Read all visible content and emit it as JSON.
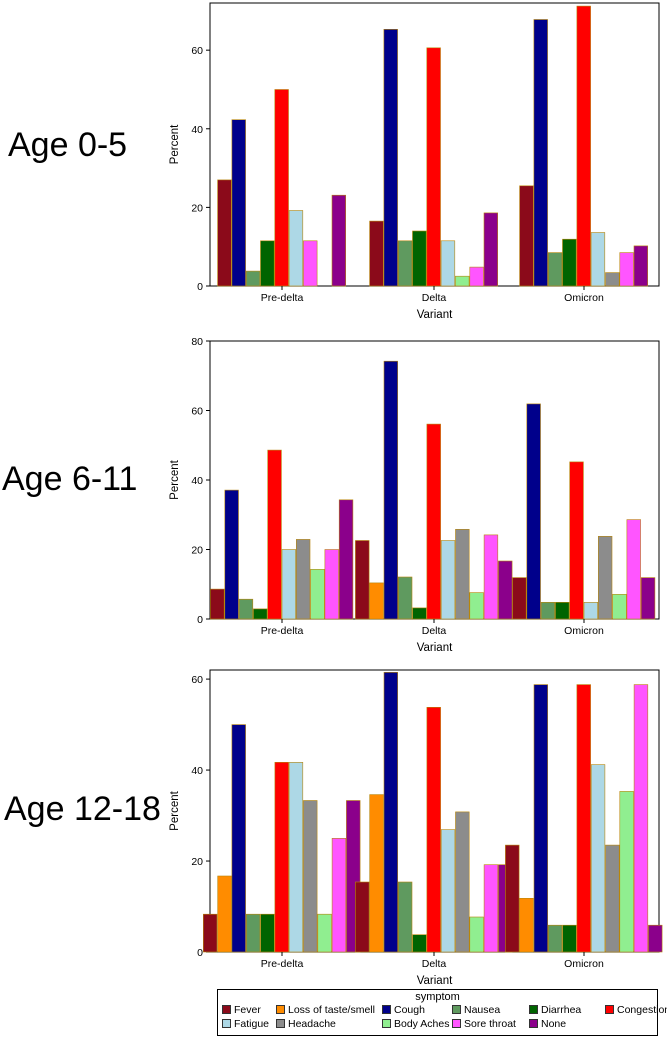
{
  "panels": [
    {
      "label": "Age 0-5"
    },
    {
      "label": "Age 6-11"
    },
    {
      "label": "Age 12-18"
    }
  ],
  "legend": {
    "title": "symptom",
    "items": [
      {
        "name": "Fever",
        "color": "#8b0a1a"
      },
      {
        "name": "Loss of taste/smell",
        "color": "#ff8c00"
      },
      {
        "name": "Cough",
        "color": "#00008b"
      },
      {
        "name": "Nausea",
        "color": "#5f9a5f"
      },
      {
        "name": "Diarrhea",
        "color": "#006400"
      },
      {
        "name": "Congestion",
        "color": "#ff0000"
      },
      {
        "name": "Fatigue",
        "color": "#add8e6"
      },
      {
        "name": "Headache",
        "color": "#8c8c8c"
      },
      {
        "name": "Body Aches",
        "color": "#90ee90"
      },
      {
        "name": "Sore throat",
        "color": "#ff55ff"
      },
      {
        "name": "None",
        "color": "#8b008b"
      }
    ]
  },
  "chart_data": [
    {
      "type": "bar",
      "title": "Age 0-5",
      "xlabel": "Variant",
      "ylabel": "Percent",
      "categories": [
        "Pre-delta",
        "Delta",
        "Omicron"
      ],
      "ylim": [
        0,
        72
      ],
      "yticks": [
        0,
        20,
        40,
        60
      ],
      "series": [
        {
          "name": "Fever",
          "values": [
            27,
            16.5,
            25.5
          ]
        },
        {
          "name": "Loss of taste/smell",
          "values": [
            0,
            0,
            0
          ]
        },
        {
          "name": "Cough",
          "values": [
            42.3,
            65.3,
            67.8
          ]
        },
        {
          "name": "Nausea",
          "values": [
            3.8,
            11.5,
            8.5
          ]
        },
        {
          "name": "Diarrhea",
          "values": [
            11.5,
            14,
            11.9
          ]
        },
        {
          "name": "Congestion",
          "values": [
            50,
            60.6,
            71.2
          ]
        },
        {
          "name": "Fatigue",
          "values": [
            19.2,
            11.5,
            13.6
          ]
        },
        {
          "name": "Headache",
          "values": [
            0,
            0,
            3.4
          ]
        },
        {
          "name": "Body Aches",
          "values": [
            0,
            2.5,
            0
          ]
        },
        {
          "name": "Sore throat",
          "values": [
            11.5,
            4.8,
            8.5
          ]
        },
        {
          "name": "None",
          "values": [
            23.1,
            18.6,
            10.2
          ]
        }
      ],
      "order": [
        "Fever",
        "Cough",
        "Nausea",
        "Diarrhea",
        "Congestion",
        "Fatigue",
        "Sore throat",
        "Headache",
        "Body Aches",
        "None"
      ],
      "group_orders": [
        [
          "Fever",
          "Cough",
          "Nausea",
          "Diarrhea",
          "Congestion",
          "Fatigue",
          "Sore throat",
          "Headache",
          "None"
        ],
        [
          "Fever",
          "Cough",
          "Nausea",
          "Diarrhea",
          "Congestion",
          "Fatigue",
          "Body Aches",
          "Sore throat",
          "None"
        ],
        [
          "Fever",
          "Cough",
          "Nausea",
          "Diarrhea",
          "Congestion",
          "Fatigue",
          "Headache",
          "Sore throat",
          "None"
        ]
      ]
    },
    {
      "type": "bar",
      "title": "Age 6-11",
      "xlabel": "Variant",
      "ylabel": "Percent",
      "categories": [
        "Pre-delta",
        "Delta",
        "Omicron"
      ],
      "ylim": [
        0,
        80
      ],
      "yticks": [
        0,
        20,
        40,
        60,
        80
      ],
      "series": [
        {
          "name": "Fever",
          "values": [
            8.6,
            22.6,
            11.9
          ]
        },
        {
          "name": "Loss of taste/smell",
          "values": [
            0,
            10.4,
            0
          ]
        },
        {
          "name": "Cough",
          "values": [
            37.1,
            74.2,
            61.9
          ]
        },
        {
          "name": "Nausea",
          "values": [
            5.7,
            12.1,
            4.8
          ]
        },
        {
          "name": "Diarrhea",
          "values": [
            2.9,
            3.2,
            4.8
          ]
        },
        {
          "name": "Congestion",
          "values": [
            48.6,
            56.1,
            45.2
          ]
        },
        {
          "name": "Fatigue",
          "values": [
            20,
            22.6,
            4.8
          ]
        },
        {
          "name": "Headache",
          "values": [
            22.9,
            25.8,
            23.8
          ]
        },
        {
          "name": "Body Aches",
          "values": [
            14.3,
            7.6,
            7.1
          ]
        },
        {
          "name": "Sore throat",
          "values": [
            20,
            24.2,
            28.6
          ]
        },
        {
          "name": "None",
          "values": [
            34.3,
            16.7,
            11.9
          ]
        }
      ],
      "group_orders": [
        [
          "Fever",
          "Cough",
          "Nausea",
          "Diarrhea",
          "Congestion",
          "Fatigue",
          "Headache",
          "Body Aches",
          "Sore throat",
          "None"
        ],
        [
          "Fever",
          "Loss of taste/smell",
          "Cough",
          "Nausea",
          "Diarrhea",
          "Congestion",
          "Fatigue",
          "Headache",
          "Body Aches",
          "Sore throat",
          "None"
        ],
        [
          "Fever",
          "Cough",
          "Nausea",
          "Diarrhea",
          "Congestion",
          "Fatigue",
          "Headache",
          "Body Aches",
          "Sore throat",
          "None"
        ]
      ]
    },
    {
      "type": "bar",
      "title": "Age 12-18",
      "xlabel": "Variant",
      "ylabel": "Percent",
      "categories": [
        "Pre-delta",
        "Delta",
        "Omicron"
      ],
      "ylim": [
        0,
        62
      ],
      "yticks": [
        0,
        20,
        40,
        60
      ],
      "series": [
        {
          "name": "Fever",
          "values": [
            8.3,
            15.4,
            23.5
          ]
        },
        {
          "name": "Loss of taste/smell",
          "values": [
            16.7,
            34.6,
            11.8
          ]
        },
        {
          "name": "Cough",
          "values": [
            50,
            61.5,
            58.8
          ]
        },
        {
          "name": "Nausea",
          "values": [
            8.3,
            15.4,
            5.9
          ]
        },
        {
          "name": "Diarrhea",
          "values": [
            8.3,
            3.8,
            5.9
          ]
        },
        {
          "name": "Congestion",
          "values": [
            41.7,
            53.8,
            58.8
          ]
        },
        {
          "name": "Fatigue",
          "values": [
            41.7,
            26.9,
            41.2
          ]
        },
        {
          "name": "Headache",
          "values": [
            33.3,
            30.8,
            23.5
          ]
        },
        {
          "name": "Body Aches",
          "values": [
            8.3,
            7.7,
            35.3
          ]
        },
        {
          "name": "Sore throat",
          "values": [
            25,
            19.2,
            58.8
          ]
        },
        {
          "name": "None",
          "values": [
            33.3,
            19.2,
            5.9
          ]
        }
      ],
      "group_orders": [
        [
          "Fever",
          "Loss of taste/smell",
          "Cough",
          "Nausea",
          "Diarrhea",
          "Congestion",
          "Fatigue",
          "Headache",
          "Body Aches",
          "Sore throat",
          "None"
        ],
        [
          "Fever",
          "Loss of taste/smell",
          "Cough",
          "Nausea",
          "Diarrhea",
          "Congestion",
          "Fatigue",
          "Headache",
          "Body Aches",
          "Sore throat",
          "None"
        ],
        [
          "Fever",
          "Loss of taste/smell",
          "Cough",
          "Nausea",
          "Diarrhea",
          "Congestion",
          "Fatigue",
          "Headache",
          "Body Aches",
          "Sore throat",
          "None"
        ]
      ]
    }
  ]
}
